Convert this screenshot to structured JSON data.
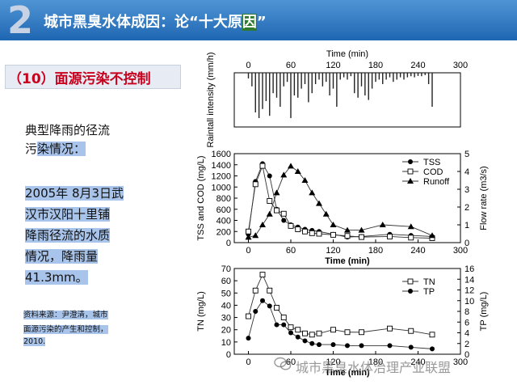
{
  "header": {
    "number": "2",
    "title_prefix": "城市黑臭水体成因：论“十大原",
    "title_mark": "因",
    "title_suffix": "”"
  },
  "section": {
    "label": "（10）面源污染不控制"
  },
  "description": {
    "line1": "典型降雨的径流",
    "line2a": "污",
    "line2b": "染情况：",
    "details": [
      "2005年 8月3日武",
      "汉市汉阳十里铺",
      "降雨径流的水质",
      "情况，降雨量",
      "41.3mm。"
    ]
  },
  "source_note": [
    "资料来源：尹澄清，城市",
    "面源污染的产生和控制，",
    "2010."
  ],
  "watermark": "城市黑臭水体治理产业联盟",
  "colors": {
    "title_bar": "#1f66b3",
    "section_text": "#c8001e",
    "selection": "#a9c4ea"
  },
  "chart_data": [
    {
      "type": "bar",
      "xlabel": "Time (min)",
      "ylabel": "Raintall intensity (mm/h)",
      "xlim": [
        -20,
        300
      ],
      "x_ticks": [
        "0",
        "60",
        "120",
        "180",
        "240",
        "300"
      ],
      "orientation": "downward",
      "x": [
        0,
        5,
        10,
        15,
        20,
        25,
        30,
        35,
        40,
        45,
        50,
        55,
        60,
        65,
        70,
        75,
        80,
        85,
        90,
        95,
        100,
        105,
        110,
        115,
        120,
        125,
        130,
        135,
        140,
        145,
        150,
        155,
        160,
        165,
        170,
        175,
        180,
        185,
        190,
        195,
        200,
        205,
        210,
        215,
        220,
        225,
        230,
        235,
        240,
        245,
        250,
        255,
        260
      ],
      "values": [
        5,
        12,
        35,
        40,
        32,
        25,
        38,
        18,
        22,
        30,
        12,
        8,
        40,
        20,
        22,
        14,
        10,
        26,
        18,
        10,
        6,
        12,
        8,
        20,
        14,
        30,
        6,
        4,
        6,
        3,
        18,
        22,
        12,
        20,
        24,
        14,
        8,
        6,
        10,
        6,
        4,
        8,
        6,
        4,
        6,
        4,
        3,
        4,
        2,
        3,
        2,
        10,
        30
      ]
    },
    {
      "type": "line",
      "xlabel": "Time (min)",
      "ylabel": "TSS and COD (mg/L)",
      "y2label": "Flow rate (m3/s)",
      "xlim": [
        -20,
        300
      ],
      "ylim": [
        0,
        1600
      ],
      "y2lim": [
        0,
        5
      ],
      "x_ticks": [
        "0",
        "60",
        "120",
        "180",
        "240",
        "300"
      ],
      "y_ticks": [
        "0",
        "200",
        "400",
        "600",
        "800",
        "1000",
        "1200",
        "1400",
        "1600"
      ],
      "y2_ticks": [
        "0",
        "1",
        "2",
        "3",
        "4",
        "5"
      ],
      "legend_position": "top-right",
      "series": [
        {
          "name": "TSS",
          "marker": "filled-circle",
          "axis": "left",
          "x": [
            0,
            10,
            20,
            30,
            40,
            50,
            60,
            70,
            80,
            90,
            100,
            120,
            140,
            160,
            200,
            230,
            260
          ],
          "values": [
            150,
            1100,
            1420,
            1200,
            600,
            400,
            320,
            280,
            240,
            220,
            200,
            150,
            100,
            110,
            150,
            130,
            110
          ]
        },
        {
          "name": "COD",
          "marker": "open-square",
          "axis": "left",
          "x": [
            0,
            10,
            20,
            30,
            40,
            50,
            60,
            70,
            80,
            90,
            100,
            120,
            140,
            160,
            200,
            230,
            260
          ],
          "values": [
            200,
            1050,
            1380,
            750,
            580,
            520,
            300,
            240,
            200,
            170,
            160,
            140,
            120,
            100,
            110,
            90,
            80
          ]
        },
        {
          "name": "Runoff",
          "marker": "filled-triangle",
          "axis": "right",
          "x": [
            0,
            10,
            20,
            30,
            40,
            50,
            60,
            70,
            80,
            90,
            100,
            110,
            120,
            140,
            160,
            190,
            230,
            260
          ],
          "values": [
            0.3,
            0.4,
            1.0,
            1.6,
            2.8,
            3.8,
            4.3,
            4.0,
            3.5,
            2.8,
            2.2,
            1.6,
            1.0,
            0.7,
            0.7,
            1.0,
            0.9,
            0.4
          ]
        }
      ]
    },
    {
      "type": "line",
      "xlabel": "Time (min)",
      "ylabel": "TN (mg/L)",
      "y2label": "TP (mg/L)",
      "xlim": [
        -20,
        300
      ],
      "ylim": [
        0,
        70
      ],
      "y2lim": [
        0,
        16
      ],
      "x_ticks": [
        "0",
        "60",
        "120",
        "180",
        "240",
        "300"
      ],
      "y_ticks": [
        "0",
        "10",
        "20",
        "30",
        "40",
        "50",
        "60",
        "70"
      ],
      "y2_ticks": [
        "0",
        "2",
        "4",
        "6",
        "8",
        "10",
        "12",
        "14",
        "16"
      ],
      "legend_position": "top-right",
      "series": [
        {
          "name": "TN",
          "marker": "open-square",
          "axis": "left",
          "x": [
            0,
            10,
            20,
            30,
            40,
            50,
            60,
            70,
            80,
            90,
            100,
            120,
            140,
            160,
            200,
            230,
            260
          ],
          "values": [
            31,
            52,
            65,
            52,
            38,
            30,
            22,
            20,
            17,
            16,
            17,
            20,
            18,
            18,
            21,
            19,
            16
          ]
        },
        {
          "name": "TP",
          "marker": "filled-circle",
          "axis": "right",
          "x": [
            0,
            10,
            20,
            30,
            40,
            50,
            60,
            70,
            80,
            90,
            100,
            120,
            140,
            160,
            200,
            230,
            260
          ],
          "values": [
            3.0,
            8.0,
            10.0,
            9.0,
            5.5,
            5.5,
            4.0,
            3.2,
            2.5,
            2.0,
            1.8,
            1.8,
            1.6,
            1.6,
            1.6,
            1.3,
            1.0
          ]
        }
      ]
    }
  ]
}
